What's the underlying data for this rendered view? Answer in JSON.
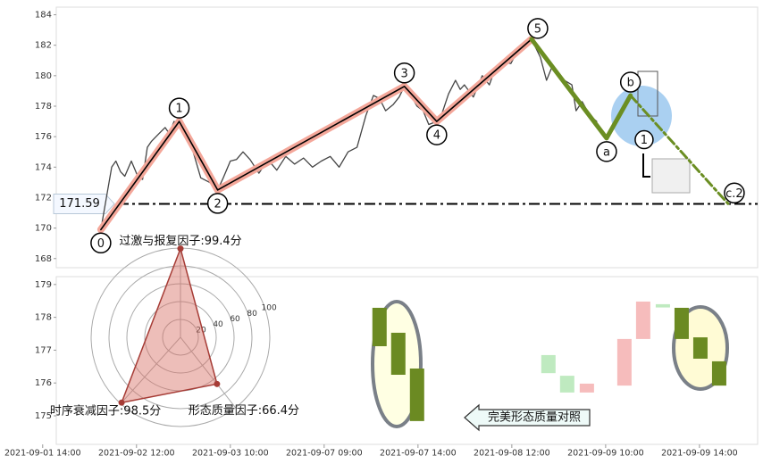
{
  "chart_data": [
    {
      "type": "line",
      "xlim": [
        2.9,
        152.4
      ],
      "ylim": [
        167.4,
        184.5
      ],
      "yticks": [
        168,
        170,
        172,
        174,
        176,
        178,
        180,
        182,
        184
      ],
      "hline": 171.59,
      "series": [
        {
          "color": "#444444",
          "width": 1.3,
          "x": [
            12.4,
            14.7,
            15.6,
            16.6,
            17.5,
            18.9,
            20.4,
            21.3,
            22.3,
            23.2,
            24.8,
            26.1,
            27.0,
            28.0,
            29.1,
            30.5,
            31.8,
            33.7,
            35.6,
            37.3,
            38.5,
            40.0,
            41.3,
            42.7,
            44.2,
            46.1,
            48.0,
            49.9,
            51.8,
            53.7,
            55.6,
            57.5,
            59.4,
            61.3,
            63.2,
            65.1,
            67.0,
            68.9,
            70.5,
            71.8,
            73.1,
            74.7,
            76.0,
            77.1,
            78.5,
            79.8,
            81.1,
            82.3,
            84.0,
            85.1,
            86.5,
            88.0,
            89.0,
            89.9,
            91.8,
            93.7,
            95.2,
            96.6,
            98.5,
            99.8,
            101.0,
            102.3,
            104.2,
            106.1,
            107.4,
            108.6,
            109.9,
            111.2,
            112.8,
            113.7,
            115.0,
            116.6,
            118.1
          ],
          "values": [
            169.9,
            174.0,
            174.4,
            173.7,
            173.4,
            174.4,
            173.3,
            173.2,
            175.3,
            175.7,
            176.2,
            176.6,
            176.2,
            177.0,
            176.8,
            176.2,
            175.3,
            173.3,
            173.0,
            172.5,
            173.3,
            174.4,
            174.5,
            175.0,
            174.5,
            173.6,
            174.5,
            173.8,
            174.7,
            174.2,
            174.6,
            174.0,
            174.4,
            174.7,
            174.0,
            175.0,
            175.3,
            177.4,
            178.7,
            178.5,
            177.7,
            178.1,
            178.6,
            179.3,
            178.7,
            178.0,
            177.7,
            176.8,
            177.0,
            177.5,
            178.8,
            179.7,
            179.1,
            179.4,
            178.6,
            180.0,
            179.4,
            180.6,
            180.9,
            180.8,
            181.5,
            181.8,
            182.4,
            181.2,
            179.7,
            180.6,
            180.0,
            179.7,
            179.4,
            177.7,
            178.3,
            177.4,
            177.0
          ]
        },
        {
          "color": "#000000",
          "width": 1.6,
          "halo": "#f4a79a",
          "x": [
            12.4,
            29.1,
            37.3,
            77.1,
            84.0,
            104.2
          ],
          "values": [
            169.9,
            177.0,
            172.5,
            179.3,
            177.0,
            182.4
          ],
          "point_labels": [
            "0",
            "1",
            "2",
            "3",
            "4",
            "5"
          ]
        },
        {
          "color": "#6b8e23",
          "width": 5,
          "dash_from": 2,
          "x": [
            104.2,
            120.2,
            125.3,
            146.1
          ],
          "values": [
            182.4,
            175.9,
            178.7,
            171.6
          ],
          "point_labels": [
            null,
            "a",
            "b",
            "c.2"
          ]
        }
      ],
      "markers": [
        {
          "label": "1",
          "x": 128.2,
          "y": 175.8
        }
      ]
    },
    {
      "type": "radar",
      "values": [
        99.4,
        98.5,
        66.4
      ],
      "value_labels": [
        "过激与报复因子:99.4分",
        "时序衰减因子:98.5分",
        "形态质量因子:66.4分"
      ],
      "rlim": [
        0,
        100
      ],
      "rticks": [
        20,
        40,
        60,
        80,
        100
      ],
      "color": "#a63c36"
    },
    {
      "type": "candlestick",
      "xlim": [
        2.9,
        152.4
      ],
      "ylim": [
        174.13,
        179.24
      ],
      "yticks": [
        175,
        176,
        177,
        178,
        179
      ],
      "xticks": [
        {
          "value": 0,
          "label": "2021-09-01 14:00"
        },
        {
          "value": 20,
          "label": "2021-09-02 12:00"
        },
        {
          "value": 40,
          "label": "2021-09-03 10:00"
        },
        {
          "value": 60,
          "label": "2021-09-07 09:00"
        },
        {
          "value": 80,
          "label": "2021-09-07 14:00"
        },
        {
          "value": 100,
          "label": "2021-09-08 12:00"
        },
        {
          "value": 120,
          "label": "2021-09-09 10:00"
        },
        {
          "value": 140,
          "label": "2021-09-09 14:00"
        }
      ],
      "x": [
        71.8,
        75.8,
        79.8,
        107.8,
        111.8,
        116.0,
        124.0,
        128.0,
        132.2,
        136.2,
        140.2,
        144.2
      ],
      "open": [
        178.29,
        177.53,
        176.44,
        176.3,
        175.71,
        175.98,
        177.34,
        178.48,
        178.3,
        178.29,
        177.39,
        176.66
      ],
      "close": [
        177.12,
        176.25,
        174.84,
        176.85,
        176.22,
        175.71,
        175.92,
        177.34,
        178.4,
        177.34,
        176.74,
        175.92
      ],
      "colors": [
        "#6b8a22",
        "#6b8a22",
        "#6b8a22",
        "#bfeac0",
        "#bfeac0",
        "#f6bcbc",
        "#f6bcbc",
        "#f6bcbc",
        "#bfeac0",
        "#6b8a22",
        "#6b8a22",
        "#6b8a22"
      ],
      "annotation": "完美形态质量对照"
    }
  ]
}
